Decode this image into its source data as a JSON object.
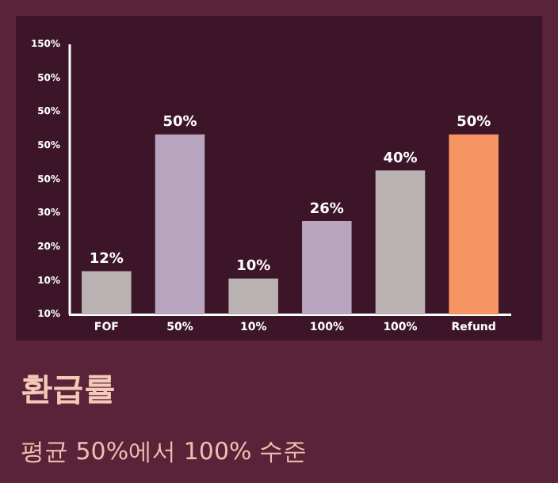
{
  "chart_data": {
    "type": "bar",
    "title": "환급률",
    "subtitle": "평균 50%에서 100% 수준",
    "categories": [
      "FOF",
      "50%",
      "10%",
      "100%",
      "100%",
      "Refund"
    ],
    "values": [
      12,
      50,
      10,
      26,
      40,
      50
    ],
    "value_labels": [
      "12%",
      "50%",
      "10%",
      "26%",
      "40%",
      "50%"
    ],
    "colors": [
      "#bab1b3",
      "#b9a5c0",
      "#bab1b3",
      "#b9a5c0",
      "#bab1b3",
      "#f79463"
    ],
    "annotations": [
      "10%",
      "10%",
      "20%",
      "30%",
      "50%",
      "50%",
      "50%",
      "50%",
      "150%"
    ],
    "grid": false,
    "legend": false
  }
}
